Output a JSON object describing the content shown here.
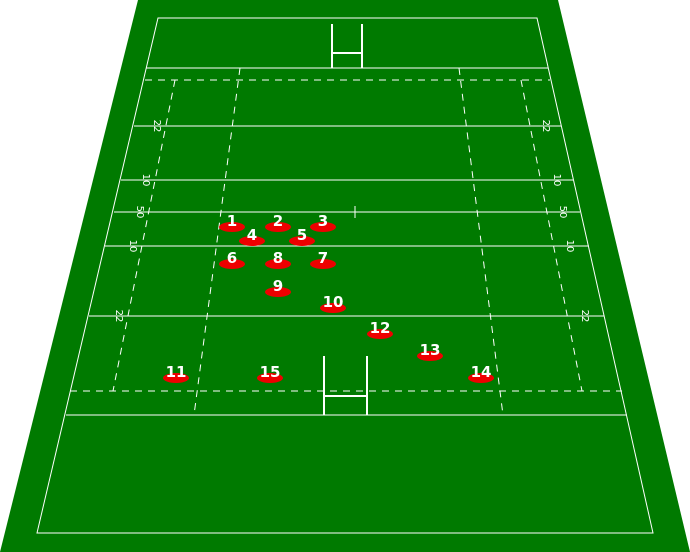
{
  "colors": {
    "pitch": "#007a00",
    "lines": "#ffffff",
    "player": "#ee0000",
    "player_number": "#ffffff"
  },
  "markings": {
    "twenty_two": "22",
    "ten": "10",
    "fifty": "50"
  },
  "players": [
    {
      "number": "1"
    },
    {
      "number": "2"
    },
    {
      "number": "3"
    },
    {
      "number": "4"
    },
    {
      "number": "5"
    },
    {
      "number": "6"
    },
    {
      "number": "7"
    },
    {
      "number": "8"
    },
    {
      "number": "9"
    },
    {
      "number": "10"
    },
    {
      "number": "11"
    },
    {
      "number": "12"
    },
    {
      "number": "13"
    },
    {
      "number": "14"
    },
    {
      "number": "15"
    }
  ]
}
